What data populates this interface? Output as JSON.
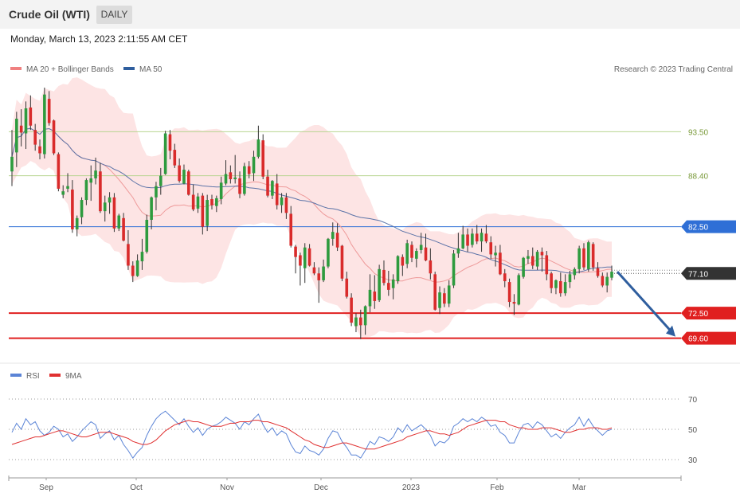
{
  "header": {
    "title": "Crude Oil (WTI)",
    "timeframe": "DAILY"
  },
  "timestamp": "Monday, March 13, 2023 2:11:55 AM CET",
  "legend": {
    "ma20": {
      "label": "MA 20 + Bollinger Bands",
      "color": "#f08080"
    },
    "ma50": {
      "label": "MA 50",
      "color": "#2f5e9e"
    },
    "copyright": "Research © 2023 Trading Central"
  },
  "rsi_legend": {
    "rsi": {
      "label": "RSI",
      "color": "#5b84d6"
    },
    "ma9": {
      "label": "9MA",
      "color": "#e03030"
    }
  },
  "chart_data": {
    "type": "candlestick",
    "price_range": [
      66.8,
      98.6
    ],
    "levels": [
      {
        "value": 93.5,
        "label": "93.50",
        "style": "thin",
        "color": "#b7d48f"
      },
      {
        "value": 88.4,
        "label": "88.40",
        "style": "thin",
        "color": "#b7d48f"
      },
      {
        "value": 82.5,
        "label": "82.50",
        "style": "resistance",
        "color": "#2f6fd6"
      },
      {
        "value": 77.1,
        "label": "77.10",
        "style": "current",
        "color": "#333333"
      },
      {
        "value": 72.5,
        "label": "72.50",
        "style": "support",
        "color": "#e02020"
      },
      {
        "value": 69.6,
        "label": "69.60",
        "style": "support",
        "color": "#e02020"
      }
    ],
    "projection": {
      "from": 77.3,
      "to": 69.6
    },
    "x_labels": [
      "Sep",
      "Oct",
      "Nov",
      "Dec",
      "2023",
      "Feb",
      "Mar"
    ],
    "candles": [
      [
        88.9,
        93.7,
        87.2,
        90.6
      ],
      [
        91.1,
        95.8,
        89.4,
        95.0
      ],
      [
        94.2,
        96.1,
        91.8,
        93.4
      ],
      [
        93.3,
        97.0,
        91.5,
        96.2
      ],
      [
        96.3,
        97.7,
        93.7,
        94.2
      ],
      [
        93.7,
        94.4,
        91.3,
        92.0
      ],
      [
        91.8,
        92.6,
        90.3,
        91.0
      ],
      [
        90.9,
        98.6,
        90.4,
        97.8
      ],
      [
        97.3,
        98.2,
        94.2,
        94.5
      ],
      [
        94.8,
        94.9,
        90.8,
        91.0
      ],
      [
        90.9,
        91.1,
        86.6,
        86.9
      ],
      [
        86.2,
        87.3,
        85.8,
        86.6
      ],
      [
        86.9,
        88.7,
        86.5,
        87.2
      ],
      [
        86.8,
        87.9,
        81.8,
        82.2
      ],
      [
        82.2,
        83.8,
        81.4,
        83.5
      ],
      [
        83.6,
        85.9,
        82.8,
        85.6
      ],
      [
        85.6,
        88.1,
        85.0,
        87.9
      ],
      [
        87.6,
        89.6,
        85.5,
        88.1
      ],
      [
        88.1,
        90.5,
        87.4,
        89.0
      ],
      [
        88.9,
        89.9,
        84.1,
        84.3
      ],
      [
        84.3,
        86.1,
        83.1,
        85.3
      ],
      [
        85.3,
        86.5,
        84.0,
        85.9
      ],
      [
        85.9,
        86.4,
        81.9,
        82.3
      ],
      [
        82.3,
        84.0,
        82.0,
        83.8
      ],
      [
        83.5,
        84.1,
        80.8,
        80.9
      ],
      [
        80.5,
        82.1,
        77.5,
        78.0
      ],
      [
        78.0,
        78.5,
        76.1,
        76.8
      ],
      [
        76.8,
        79.3,
        76.7,
        78.6
      ],
      [
        78.5,
        81.1,
        77.5,
        79.6
      ],
      [
        79.6,
        83.9,
        79.4,
        83.3
      ],
      [
        83.3,
        86.0,
        82.2,
        85.9
      ],
      [
        85.9,
        87.7,
        84.4,
        87.2
      ],
      [
        87.2,
        89.3,
        86.2,
        88.4
      ],
      [
        88.6,
        93.6,
        88.5,
        93.3
      ],
      [
        93.2,
        93.7,
        90.3,
        91.3
      ],
      [
        91.4,
        92.1,
        89.3,
        89.6
      ],
      [
        89.6,
        90.4,
        87.6,
        87.8
      ],
      [
        87.5,
        89.7,
        87.4,
        89.1
      ],
      [
        88.9,
        89.1,
        86.1,
        86.2
      ],
      [
        86.2,
        87.4,
        84.3,
        84.5
      ],
      [
        84.6,
        86.4,
        84.1,
        86.0
      ],
      [
        86.1,
        86.4,
        81.6,
        82.5
      ],
      [
        82.6,
        86.2,
        82.0,
        85.6
      ],
      [
        85.7,
        86.2,
        84.5,
        85.0
      ],
      [
        84.9,
        86.1,
        84.2,
        85.8
      ],
      [
        85.7,
        88.3,
        85.1,
        87.6
      ],
      [
        87.5,
        90.2,
        87.3,
        88.6
      ],
      [
        88.8,
        89.6,
        87.5,
        88.0
      ],
      [
        88.0,
        90.8,
        87.5,
        88.2
      ],
      [
        88.1,
        88.9,
        85.8,
        86.3
      ],
      [
        86.3,
        89.9,
        86.1,
        89.5
      ],
      [
        89.5,
        90.1,
        88.1,
        88.6
      ],
      [
        88.7,
        91.3,
        87.8,
        90.6
      ],
      [
        90.6,
        94.2,
        90.4,
        92.6
      ],
      [
        92.5,
        93.2,
        88.0,
        88.3
      ],
      [
        88.3,
        89.1,
        85.9,
        86.1
      ],
      [
        86.1,
        87.9,
        85.7,
        87.8
      ],
      [
        87.5,
        88.6,
        84.5,
        85.0
      ],
      [
        85.0,
        86.4,
        84.1,
        85.9
      ],
      [
        85.9,
        86.4,
        83.4,
        84.1
      ],
      [
        84.0,
        84.9,
        80.1,
        80.3
      ],
      [
        80.2,
        80.4,
        77.1,
        79.0
      ],
      [
        79.2,
        79.5,
        75.7,
        78.0
      ],
      [
        77.7,
        80.6,
        76.0,
        80.1
      ],
      [
        80.0,
        80.5,
        77.9,
        78.0
      ],
      [
        77.8,
        78.4,
        76.9,
        77.1
      ],
      [
        77.1,
        77.8,
        73.7,
        76.3
      ],
      [
        76.3,
        78.7,
        76.1,
        77.9
      ],
      [
        77.9,
        81.2,
        77.7,
        81.1
      ],
      [
        81.1,
        83.0,
        80.3,
        81.9
      ],
      [
        81.8,
        82.9,
        79.7,
        80.1
      ],
      [
        80.3,
        80.4,
        76.2,
        76.5
      ],
      [
        76.5,
        77.3,
        74.2,
        74.4
      ],
      [
        74.3,
        74.8,
        71.0,
        71.4
      ],
      [
        71.0,
        72.5,
        70.3,
        72.0
      ],
      [
        72.0,
        72.9,
        69.5,
        71.1
      ],
      [
        71.1,
        73.4,
        70.0,
        73.3
      ],
      [
        73.3,
        77.0,
        72.6,
        75.2
      ],
      [
        75.0,
        76.9,
        73.0,
        73.9
      ],
      [
        74.0,
        78.1,
        73.8,
        77.6
      ],
      [
        77.5,
        78.6,
        75.7,
        76.0
      ],
      [
        76.0,
        77.4,
        74.5,
        75.2
      ],
      [
        75.4,
        77.0,
        74.1,
        76.4
      ],
      [
        76.2,
        79.2,
        75.9,
        79.1
      ],
      [
        79.0,
        79.3,
        76.8,
        78.0
      ],
      [
        78.2,
        81.0,
        77.7,
        80.6
      ],
      [
        80.4,
        80.8,
        78.4,
        78.9
      ],
      [
        78.8,
        80.0,
        77.8,
        79.7
      ],
      [
        79.8,
        81.8,
        79.4,
        80.4
      ],
      [
        80.1,
        81.7,
        78.5,
        78.6
      ],
      [
        78.6,
        80.0,
        76.4,
        77.1
      ],
      [
        77.0,
        77.3,
        72.8,
        72.9
      ],
      [
        73.1,
        75.6,
        72.4,
        74.9
      ],
      [
        74.8,
        75.4,
        73.2,
        73.6
      ],
      [
        73.6,
        76.3,
        73.2,
        75.7
      ],
      [
        75.7,
        79.8,
        75.4,
        79.4
      ],
      [
        79.4,
        81.8,
        78.9,
        80.0
      ],
      [
        80.0,
        82.6,
        79.9,
        81.6
      ],
      [
        81.6,
        82.3,
        79.6,
        80.3
      ],
      [
        80.4,
        82.3,
        80.1,
        81.7
      ],
      [
        81.7,
        82.7,
        80.5,
        80.8
      ],
      [
        80.8,
        82.3,
        79.6,
        81.8
      ],
      [
        81.7,
        82.7,
        80.6,
        80.8
      ],
      [
        80.7,
        81.4,
        78.8,
        79.3
      ],
      [
        79.2,
        80.3,
        77.9,
        79.5
      ],
      [
        79.5,
        80.4,
        76.9,
        77.0
      ],
      [
        77.1,
        77.6,
        75.5,
        76.2
      ],
      [
        76.1,
        76.5,
        73.2,
        73.8
      ],
      [
        73.8,
        74.7,
        72.3,
        73.6
      ],
      [
        73.5,
        77.1,
        73.4,
        76.9
      ],
      [
        76.7,
        79.0,
        76.5,
        78.9
      ],
      [
        78.8,
        79.8,
        78.2,
        79.1
      ],
      [
        79.1,
        80.1,
        77.6,
        78.0
      ],
      [
        77.9,
        79.8,
        77.5,
        79.6
      ],
      [
        79.6,
        80.1,
        77.3,
        79.2
      ],
      [
        79.2,
        79.7,
        76.3,
        77.0
      ],
      [
        77.1,
        77.3,
        74.8,
        75.4
      ],
      [
        75.4,
        76.4,
        74.7,
        76.3
      ],
      [
        76.2,
        77.2,
        74.4,
        74.8
      ],
      [
        74.8,
        77.0,
        74.5,
        76.1
      ],
      [
        76.1,
        77.4,
        75.4,
        77.0
      ],
      [
        76.9,
        77.8,
        76.4,
        77.6
      ],
      [
        77.6,
        80.3,
        77.1,
        80.0
      ],
      [
        80.0,
        80.6,
        77.5,
        77.8
      ],
      [
        77.6,
        80.9,
        77.3,
        80.7
      ],
      [
        80.5,
        80.7,
        77.4,
        77.8
      ],
      [
        77.7,
        78.4,
        76.6,
        76.8
      ],
      [
        76.8,
        77.2,
        75.5,
        75.7
      ],
      [
        75.7,
        77.2,
        74.9,
        76.7
      ],
      [
        76.6,
        78.0,
        76.3,
        77.3
      ]
    ],
    "rsi": {
      "range": [
        20,
        80
      ],
      "ticks": [
        "70",
        "50",
        "30"
      ],
      "rsi_values": [
        48,
        54,
        50,
        57,
        53,
        55,
        49,
        46,
        48,
        52,
        50,
        45,
        47,
        42,
        45,
        49,
        52,
        55,
        53,
        44,
        47,
        49,
        43,
        46,
        40,
        36,
        31,
        35,
        38,
        46,
        52,
        57,
        60,
        62,
        59,
        56,
        53,
        57,
        52,
        48,
        51,
        46,
        50,
        52,
        53,
        55,
        58,
        56,
        54,
        50,
        55,
        53,
        57,
        60,
        53,
        48,
        51,
        46,
        49,
        47,
        40,
        35,
        34,
        39,
        36,
        35,
        33,
        37,
        44,
        49,
        48,
        42,
        38,
        33,
        33,
        31,
        36,
        42,
        40,
        45,
        44,
        42,
        45,
        51,
        48,
        53,
        49,
        51,
        53,
        50,
        46,
        39,
        42,
        41,
        44,
        52,
        54,
        57,
        55,
        57,
        55,
        58,
        56,
        52,
        53,
        48,
        46,
        41,
        41,
        48,
        53,
        54,
        51,
        55,
        53,
        49,
        45,
        47,
        44,
        48,
        51,
        53,
        58,
        52,
        57,
        52,
        49,
        46,
        49,
        50
      ],
      "ma9_values": [
        40,
        41,
        42,
        43,
        44,
        45,
        45,
        46,
        47,
        48,
        49,
        49,
        48,
        47,
        46,
        45,
        45,
        46,
        47,
        48,
        48,
        48,
        47,
        46,
        45,
        44,
        42,
        41,
        40,
        40,
        41,
        43,
        46,
        49,
        51,
        53,
        54,
        55,
        56,
        55,
        55,
        54,
        53,
        52,
        52,
        52,
        53,
        54,
        54,
        55,
        55,
        55,
        56,
        56,
        55,
        55,
        54,
        53,
        52,
        51,
        49,
        47,
        45,
        43,
        42,
        40,
        39,
        38,
        38,
        39,
        40,
        41,
        41,
        40,
        39,
        38,
        37,
        37,
        37,
        38,
        39,
        40,
        41,
        42,
        43,
        45,
        46,
        47,
        48,
        49,
        49,
        48,
        47,
        47,
        46,
        47,
        48,
        50,
        52,
        53,
        54,
        55,
        56,
        56,
        56,
        55,
        55,
        53,
        52,
        51,
        51,
        50,
        50,
        50,
        51,
        51,
        51,
        50,
        49,
        48,
        48,
        49,
        50,
        50,
        51,
        51,
        51,
        50,
        50,
        51
      ]
    }
  }
}
